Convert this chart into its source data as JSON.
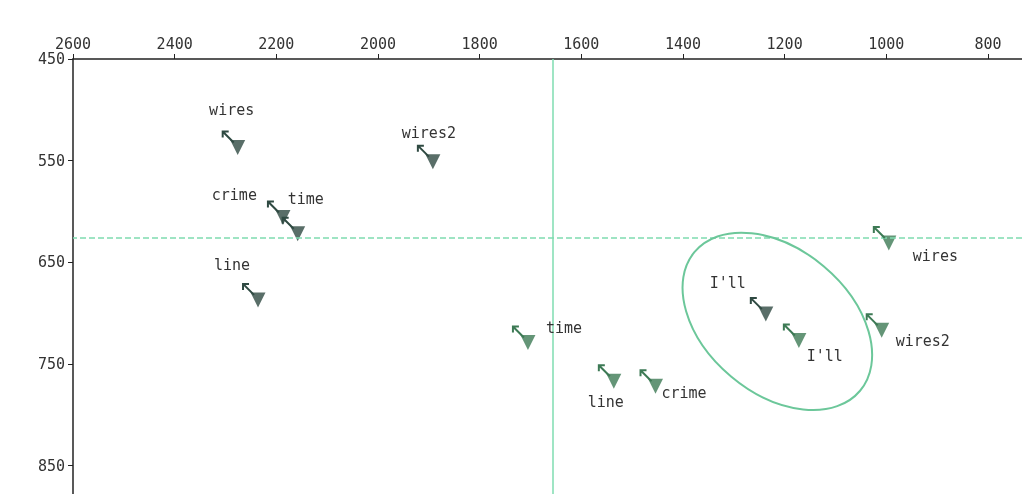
{
  "chart_data": {
    "type": "scatter",
    "xlim": [
      2600,
      733
    ],
    "ylim": [
      878,
      450
    ],
    "xticks": [
      2600,
      2400,
      2200,
      2000,
      1800,
      1600,
      1400,
      1200,
      1000,
      800
    ],
    "yticks": [
      450,
      550,
      650,
      750,
      850
    ],
    "grid": false,
    "marker": "triangle",
    "series": [
      {
        "color": "#2f4a42",
        "x": [
          2276,
          1892,
          2187,
          2158,
          2236,
          1237
        ],
        "values": [
          537,
          551,
          606,
          622,
          687,
          701
        ]
      },
      {
        "color": "#3d7a55",
        "x": [
          995,
          1009,
          1705,
          1536,
          1454,
          1172
        ],
        "values": [
          631,
          717,
          729,
          767,
          772,
          727
        ]
      }
    ],
    "ref_lines": [
      {
        "axis": "x",
        "value": 1656,
        "color": "#7fdcb0",
        "line_style": "solid"
      },
      {
        "axis": "y",
        "value": 626,
        "color": "#7fdcb0",
        "line_style": "dashed"
      }
    ],
    "annotations": [
      {
        "text": "wires",
        "x": 2276,
        "y": 537
      },
      {
        "text": "wires2",
        "x": 1892,
        "y": 551
      },
      {
        "text": "crime",
        "x": 2187,
        "y": 606
      },
      {
        "text": "time",
        "x": 2158,
        "y": 622
      },
      {
        "text": "line",
        "x": 2236,
        "y": 687
      },
      {
        "text": "I'll",
        "x": 1237,
        "y": 701
      },
      {
        "text": "wires",
        "x": 995,
        "y": 631
      },
      {
        "text": "wires2",
        "x": 1009,
        "y": 717
      },
      {
        "text": "time",
        "x": 1705,
        "y": 729
      },
      {
        "text": "line",
        "x": 1536,
        "y": 767
      },
      {
        "text": "crime",
        "x": 1454,
        "y": 772
      },
      {
        "text": "I'll",
        "x": 1172,
        "y": 727
      }
    ]
  }
}
